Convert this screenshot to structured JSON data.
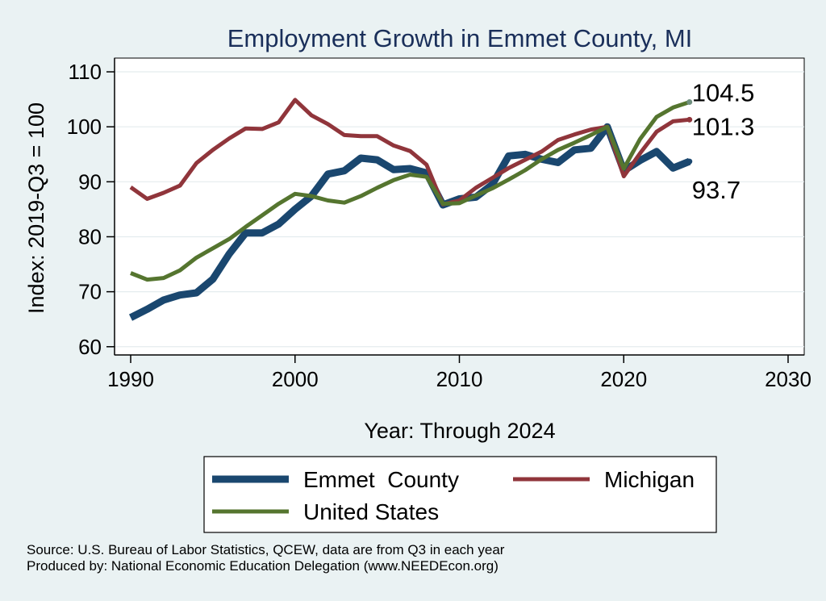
{
  "chart_data": {
    "type": "line",
    "title": "Employment Growth in Emmet County, MI",
    "xlabel": "Year: Through 2024",
    "ylabel": "Index: 2019-Q3 = 100",
    "xlim": [
      1990,
      2030
    ],
    "ylim": [
      58.5,
      112.5
    ],
    "xticks": [
      1990,
      2000,
      2010,
      2020,
      2030
    ],
    "yticks": [
      60,
      70,
      80,
      90,
      100,
      110
    ],
    "x": [
      1990,
      1991,
      1992,
      1993,
      1994,
      1995,
      1996,
      1997,
      1998,
      1999,
      2000,
      2001,
      2002,
      2003,
      2004,
      2005,
      2006,
      2007,
      2008,
      2009,
      2010,
      2011,
      2012,
      2013,
      2014,
      2015,
      2016,
      2017,
      2018,
      2019,
      2020,
      2021,
      2022,
      2023,
      2024
    ],
    "series": [
      {
        "name": "Emmet  County",
        "color": "#1a476f",
        "values": [
          65.3,
          66.8,
          68.5,
          69.4,
          69.8,
          72.3,
          76.9,
          80.7,
          80.7,
          82.3,
          85.0,
          87.4,
          91.4,
          92.0,
          94.3,
          94.0,
          92.2,
          92.4,
          91.6,
          85.8,
          86.9,
          87.2,
          89.5,
          94.7,
          95.0,
          94.1,
          93.5,
          95.8,
          96.1,
          100.0,
          92.0,
          93.9,
          95.5,
          92.5,
          93.7
        ],
        "end_label": "93.7"
      },
      {
        "name": "Michigan",
        "color": "#90353b",
        "values": [
          89.0,
          86.9,
          88.0,
          89.3,
          93.4,
          95.8,
          97.9,
          99.7,
          99.6,
          100.8,
          104.9,
          102.1,
          100.5,
          98.5,
          98.3,
          98.3,
          96.6,
          95.6,
          93.1,
          85.9,
          86.6,
          88.9,
          90.7,
          92.5,
          94.0,
          95.5,
          97.6,
          98.6,
          99.5,
          100.0,
          91.0,
          95.2,
          99.1,
          101.0,
          101.3
        ],
        "end_label": "101.3"
      },
      {
        "name": "United States",
        "color": "#55752f",
        "values": [
          73.4,
          72.2,
          72.5,
          73.9,
          76.2,
          77.9,
          79.6,
          81.8,
          83.9,
          86.0,
          87.8,
          87.4,
          86.6,
          86.2,
          87.4,
          88.9,
          90.3,
          91.3,
          90.9,
          86.0,
          86.1,
          87.5,
          88.8,
          90.4,
          92.1,
          94.1,
          95.8,
          97.1,
          98.5,
          100.0,
          92.4,
          97.8,
          101.8,
          103.5,
          104.5
        ],
        "end_label": "104.5"
      }
    ],
    "legend": {
      "entries": [
        "Emmet  County",
        "Michigan",
        "United States"
      ],
      "placement": "bottom"
    },
    "grid": true
  },
  "source": {
    "line1": "Source: U.S. Bureau of Labor Statistics, QCEW, data are from Q3 in each year",
    "line2": "Produced by: National Economic Education Delegation (www.NEEDEcon.org)"
  }
}
